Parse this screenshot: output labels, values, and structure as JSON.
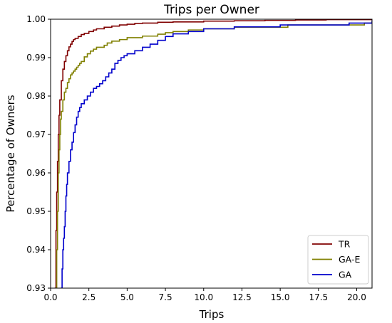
{
  "chart_data": {
    "type": "line",
    "title": "Trips per Owner",
    "xlabel": "Trips",
    "ylabel": "Percentage of Owners",
    "xlim": [
      0.0,
      21.0
    ],
    "ylim": [
      0.93,
      1.0
    ],
    "xticks": [
      "0.0",
      "2.5",
      "5.0",
      "7.5",
      "10.0",
      "12.5",
      "15.0",
      "17.5",
      "20.0"
    ],
    "xtick_values": [
      0,
      2.5,
      5,
      7.5,
      10,
      12.5,
      15,
      17.5,
      20
    ],
    "yticks": [
      "0.93",
      "0.94",
      "0.95",
      "0.96",
      "0.97",
      "0.98",
      "0.99",
      "1.00"
    ],
    "ytick_values": [
      0.93,
      0.94,
      0.95,
      0.96,
      0.97,
      0.98,
      0.99,
      1.0
    ],
    "grid": false,
    "legend_position": "lower-right",
    "series": [
      {
        "name": "TR",
        "color": "#800000",
        "x": [
          0.3,
          0.35,
          0.4,
          0.45,
          0.5,
          0.55,
          0.6,
          0.7,
          0.8,
          0.9,
          1.0,
          1.1,
          1.2,
          1.3,
          1.4,
          1.5,
          1.6,
          1.8,
          2.0,
          2.2,
          2.5,
          2.8,
          3.0,
          3.5,
          4.0,
          4.5,
          5.0,
          5.5,
          6.0,
          7.0,
          8.0,
          10.0,
          12.0,
          14.0,
          16.0,
          18.0,
          20.0,
          21.0
        ],
        "y": [
          0.93,
          0.945,
          0.955,
          0.963,
          0.97,
          0.975,
          0.979,
          0.984,
          0.987,
          0.989,
          0.9905,
          0.9918,
          0.9928,
          0.9935,
          0.9942,
          0.9947,
          0.995,
          0.9955,
          0.996,
          0.9963,
          0.9968,
          0.9972,
          0.9975,
          0.9979,
          0.9982,
          0.9985,
          0.9987,
          0.9989,
          0.999,
          0.9992,
          0.9993,
          0.9995,
          0.9996,
          0.9997,
          0.9998,
          0.9999,
          0.9999,
          0.9999
        ]
      },
      {
        "name": "GA-E",
        "color": "#808000",
        "x": [
          0.35,
          0.4,
          0.45,
          0.5,
          0.55,
          0.6,
          0.65,
          0.7,
          0.8,
          0.9,
          1.0,
          1.1,
          1.2,
          1.3,
          1.4,
          1.5,
          1.6,
          1.7,
          1.8,
          1.9,
          2.0,
          2.2,
          2.4,
          2.6,
          2.8,
          3.0,
          3.5,
          3.7,
          4.0,
          4.5,
          5.0,
          6.0,
          7.0,
          7.5,
          8.0,
          9.0,
          10.0,
          12.0,
          14.0,
          15.5,
          18.0,
          20.5,
          21.0
        ],
        "y": [
          0.93,
          0.94,
          0.95,
          0.96,
          0.966,
          0.97,
          0.974,
          0.976,
          0.979,
          0.981,
          0.982,
          0.9835,
          0.9845,
          0.9855,
          0.986,
          0.9865,
          0.987,
          0.9875,
          0.988,
          0.9885,
          0.989,
          0.9902,
          0.991,
          0.9917,
          0.9922,
          0.9927,
          0.9932,
          0.9938,
          0.9943,
          0.9947,
          0.9952,
          0.9956,
          0.9961,
          0.9965,
          0.9968,
          0.9972,
          0.9975,
          0.9979,
          0.9979,
          0.9985,
          0.9985,
          0.999,
          0.999
        ]
      },
      {
        "name": "GA",
        "color": "#0000cc",
        "x": [
          0.7,
          0.75,
          0.8,
          0.85,
          0.9,
          0.95,
          1.0,
          1.05,
          1.1,
          1.2,
          1.3,
          1.4,
          1.5,
          1.6,
          1.7,
          1.8,
          1.9,
          2.0,
          2.2,
          2.4,
          2.6,
          2.8,
          3.0,
          3.2,
          3.4,
          3.6,
          3.8,
          4.0,
          4.2,
          4.4,
          4.6,
          4.8,
          5.0,
          5.5,
          6.0,
          6.5,
          7.0,
          7.5,
          8.0,
          9.0,
          10.0,
          12.0,
          14.0,
          15.0,
          17.0,
          19.5,
          21.0
        ],
        "y": [
          0.93,
          0.935,
          0.94,
          0.943,
          0.946,
          0.95,
          0.954,
          0.957,
          0.96,
          0.963,
          0.966,
          0.968,
          0.9705,
          0.9725,
          0.9745,
          0.976,
          0.977,
          0.978,
          0.979,
          0.98,
          0.981,
          0.982,
          0.9825,
          0.9832,
          0.984,
          0.985,
          0.986,
          0.987,
          0.9885,
          0.9893,
          0.99,
          0.9905,
          0.991,
          0.9918,
          0.9927,
          0.9935,
          0.9945,
          0.9955,
          0.9962,
          0.9968,
          0.9975,
          0.998,
          0.998,
          0.9985,
          0.9985,
          0.999,
          0.9995
        ]
      }
    ]
  }
}
